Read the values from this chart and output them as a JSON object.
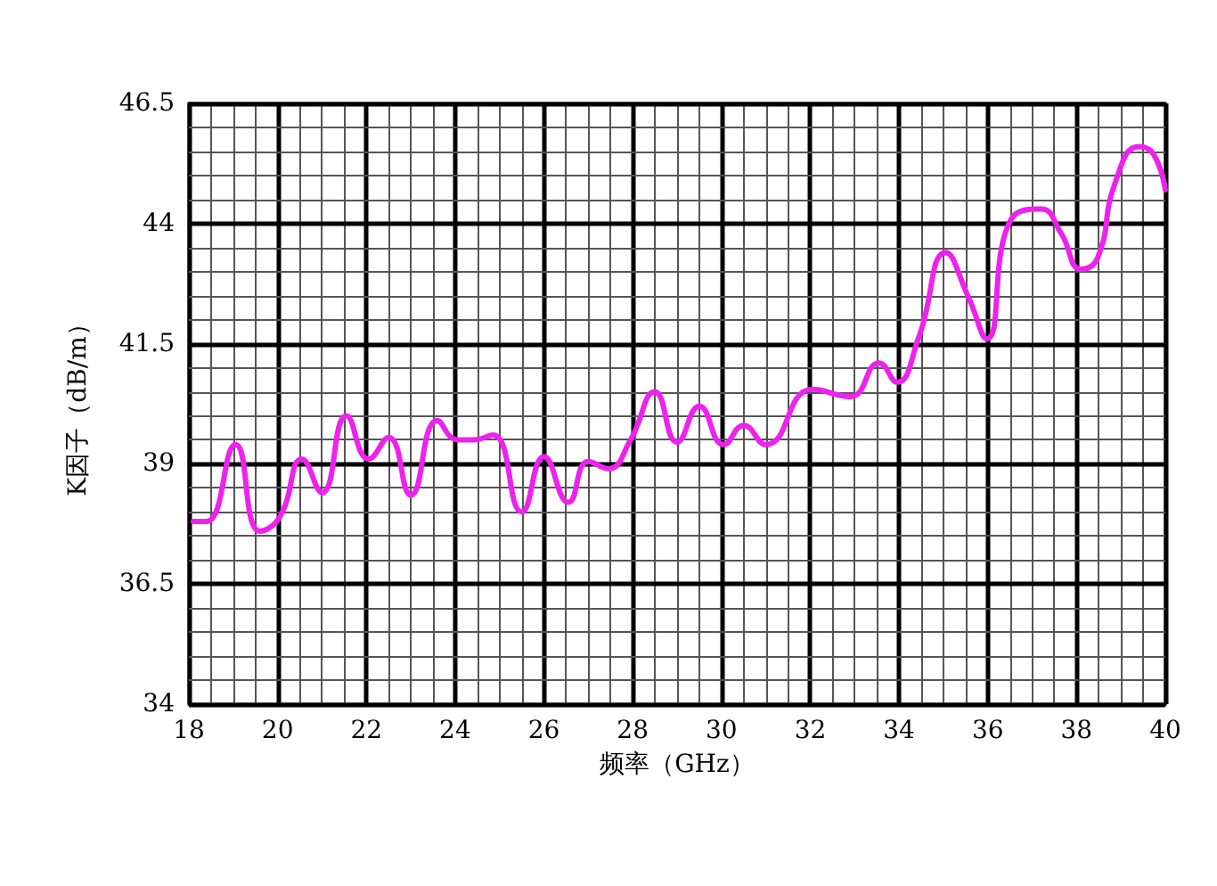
{
  "chart_data": {
    "type": "line",
    "xlabel": "频率（GHz）",
    "ylabel": "K因子（dB/m）",
    "x": [
      18.1,
      18.4,
      19.05,
      19.6,
      20.05,
      20.55,
      21.0,
      21.55,
      22.05,
      22.5,
      23.0,
      23.6,
      24.05,
      24.4,
      24.85,
      25.5,
      26.0,
      26.55,
      27.0,
      27.45,
      27.95,
      28.5,
      29.0,
      29.5,
      30.05,
      30.5,
      31.0,
      32.05,
      32.9,
      33.55,
      33.95,
      34.45,
      35.05,
      35.55,
      35.98,
      36.53,
      37.2,
      37.65,
      38.1,
      38.48,
      38.87,
      39.4,
      39.73,
      40.0
    ],
    "series": [
      {
        "color": "#ee22ee",
        "values": [
          37.8,
          37.8,
          39.4,
          37.6,
          37.9,
          39.1,
          38.4,
          40.0,
          39.1,
          39.55,
          38.35,
          39.9,
          39.5,
          39.5,
          39.6,
          38.0,
          39.15,
          38.2,
          39.05,
          38.9,
          39.5,
          40.5,
          39.45,
          40.2,
          39.4,
          39.8,
          39.4,
          40.55,
          40.4,
          41.1,
          40.7,
          41.65,
          43.4,
          42.5,
          41.6,
          44.1,
          44.3,
          43.8,
          43.05,
          43.3,
          44.85,
          45.6,
          45.45,
          44.7
        ]
      }
    ],
    "xlim": [
      18,
      40
    ],
    "xticks": [
      18,
      20,
      22,
      24,
      26,
      28,
      30,
      32,
      34,
      36,
      38,
      40
    ],
    "ylim": [
      34,
      46.5
    ],
    "yticks": [
      34,
      36.5,
      39,
      41.5,
      44,
      46.5
    ],
    "grid": true,
    "marker": "none",
    "line_style": "solid"
  }
}
